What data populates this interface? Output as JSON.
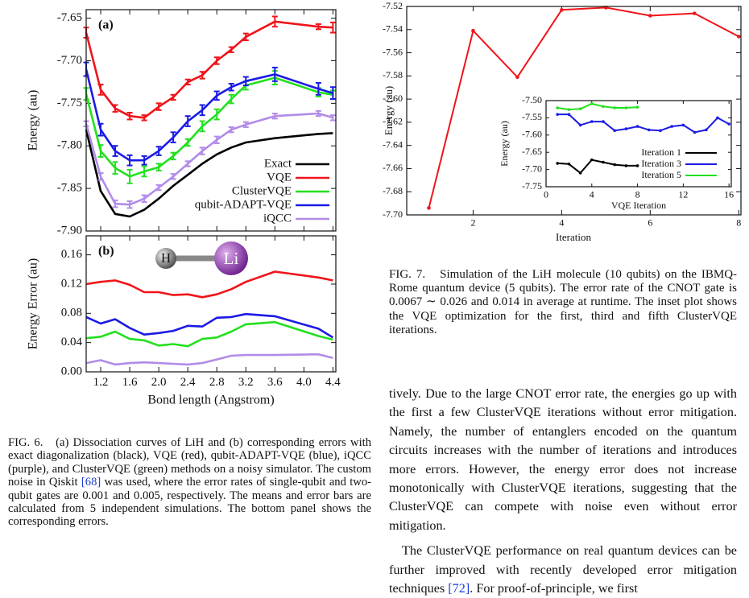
{
  "chart_data": [
    {
      "type": "line",
      "annotation": "(a)",
      "y_label": "Energy (au)",
      "x": [
        1.0,
        1.2,
        1.4,
        1.6,
        1.8,
        2.0,
        2.2,
        2.4,
        2.6,
        2.8,
        3.0,
        3.2,
        3.6,
        4.2,
        4.4
      ],
      "xlim": [
        1.0,
        4.44
      ],
      "ylim": [
        -7.9,
        -7.64
      ],
      "yticks": [
        -7.65,
        {
          "value": -7.7,
          "label": "-7.70"
        },
        -7.75,
        {
          "value": -7.8,
          "label": "-7.80"
        },
        -7.85,
        {
          "value": -7.9,
          "label": "-7.90"
        }
      ],
      "legend": "lower right",
      "series": [
        {
          "name": "Exact",
          "color": "#000000",
          "values": [
            -7.781,
            -7.853,
            -7.88,
            -7.883,
            -7.875,
            -7.862,
            -7.847,
            -7.834,
            -7.821,
            -7.81,
            -7.802,
            -7.796,
            -7.791,
            -7.786,
            -7.785
          ]
        },
        {
          "name": "VQE",
          "color": "#f0141a",
          "values": [
            -7.667,
            -7.734,
            -7.756,
            -7.765,
            -7.767,
            -7.754,
            -7.743,
            -7.725,
            -7.717,
            -7.7,
            -7.687,
            -7.672,
            -7.654,
            -7.66,
            -7.661
          ],
          "errors": [
            0.006,
            0.006,
            0.004,
            0.004,
            0.003,
            0.004,
            0.003,
            0.003,
            0.004,
            0.004,
            0.003,
            0.004,
            0.006,
            0.003,
            0.006
          ]
        },
        {
          "name": "ClusterVQE",
          "color": "#22e01e",
          "values": [
            -7.739,
            -7.806,
            -7.826,
            -7.836,
            -7.83,
            -7.825,
            -7.812,
            -7.796,
            -7.777,
            -7.763,
            -7.745,
            -7.729,
            -7.72,
            -7.737,
            -7.74
          ],
          "errors": [
            0.007,
            0.007,
            0.007,
            0.008,
            0.006,
            0.004,
            0.004,
            0.004,
            0.006,
            0.006,
            0.005,
            0.005,
            0.008,
            0.005,
            0.005
          ]
        },
        {
          "name": "qubit-ADAPT-VQE",
          "color": "#1a1ae6",
          "values": [
            -7.71,
            -7.781,
            -7.806,
            -7.817,
            -7.817,
            -7.806,
            -7.79,
            -7.771,
            -7.758,
            -7.741,
            -7.731,
            -7.724,
            -7.716,
            -7.733,
            -7.738
          ],
          "errors": [
            0.008,
            0.007,
            0.006,
            0.006,
            0.005,
            0.005,
            0.006,
            0.006,
            0.006,
            0.005,
            0.004,
            0.005,
            0.008,
            0.007,
            0.007
          ]
        },
        {
          "name": "iQCC",
          "color": "#b28ce8",
          "values": [
            -7.774,
            -7.836,
            -7.868,
            -7.869,
            -7.862,
            -7.849,
            -7.836,
            -7.821,
            -7.806,
            -7.793,
            -7.781,
            -7.775,
            -7.765,
            -7.762,
            -7.767
          ],
          "errors": [
            0.003,
            0.004,
            0.004,
            0.004,
            0.004,
            0.003,
            0.003,
            0.003,
            0.004,
            0.004,
            0.003,
            0.003,
            0.003,
            0.003,
            0.003
          ]
        }
      ]
    },
    {
      "type": "line",
      "annotation": "(b)",
      "y_label": "Energy Error (au)",
      "x_label": "Bond length (Angstrom)",
      "molecule": [
        "H",
        "Li"
      ],
      "x": [
        1.0,
        1.2,
        1.4,
        1.6,
        1.8,
        2.0,
        2.2,
        2.4,
        2.6,
        2.8,
        3.0,
        3.2,
        3.6,
        4.2,
        4.4
      ],
      "xlim": [
        1.0,
        4.44
      ],
      "ylim": [
        0,
        0.186
      ],
      "xticks": [
        1.2,
        1.6,
        {
          "value": 2,
          "label": "2.0"
        },
        2.4,
        2.8,
        3.2,
        3.6,
        {
          "value": 4,
          "label": "4.0"
        },
        4.4
      ],
      "yticks": [
        {
          "value": 0,
          "label": "0.00"
        },
        0.04,
        0.08,
        0.12,
        0.16
      ],
      "series": [
        {
          "color": "#f0141a",
          "values": [
            0.12,
            0.123,
            0.125,
            0.119,
            0.109,
            0.109,
            0.105,
            0.106,
            0.102,
            0.106,
            0.113,
            0.123,
            0.137,
            0.129,
            0.125
          ]
        },
        {
          "color": "#1a1ae6",
          "values": [
            0.075,
            0.066,
            0.072,
            0.06,
            0.051,
            0.053,
            0.056,
            0.063,
            0.062,
            0.074,
            0.075,
            0.079,
            0.076,
            0.059,
            0.047
          ]
        },
        {
          "color": "#22e01e",
          "values": [
            0.046,
            0.048,
            0.055,
            0.045,
            0.043,
            0.036,
            0.038,
            0.035,
            0.045,
            0.047,
            0.055,
            0.065,
            0.068,
            0.049,
            0.044
          ]
        },
        {
          "color": "#b28ce8",
          "values": [
            0.012,
            0.016,
            0.01,
            0.012,
            0.013,
            0.012,
            0.011,
            0.01,
            0.012,
            0.017,
            0.022,
            0.023,
            0.023,
            0.024,
            0.019
          ]
        }
      ]
    },
    {
      "type": "line",
      "y_label": "Energy (au)",
      "x_label": "Iteration",
      "markers": true,
      "x": [
        1,
        2,
        3,
        4,
        5,
        6,
        7,
        8
      ],
      "xlim": [
        0.5,
        8.05
      ],
      "ylim": [
        -7.7,
        -7.52
      ],
      "xticks": [
        2,
        4,
        6,
        8
      ],
      "yticks": [
        -7.52,
        -7.54,
        -7.56,
        -7.58,
        {
          "value": -7.6,
          "label": "-7.60"
        },
        -7.62,
        -7.64,
        -7.66,
        -7.68,
        {
          "value": -7.7,
          "label": "-7.70"
        }
      ],
      "series": [
        {
          "color": "#f0141a",
          "values": [
            -7.694,
            -7.541,
            -7.581,
            -7.523,
            -7.521,
            -7.528,
            -7.526,
            -7.546
          ]
        }
      ]
    },
    {
      "type": "line",
      "y_label": "Energy (au)",
      "x_label": "VQE Iteration",
      "markers": true,
      "legend": "lower right",
      "xlim": [
        0,
        16.2
      ],
      "ylim": [
        -7.75,
        -7.5
      ],
      "xticks": [
        0,
        4,
        8,
        12,
        16
      ],
      "yticks": [
        {
          "value": -7.5,
          "label": "-7.50"
        },
        -7.55,
        {
          "value": -7.6,
          "label": "-7.60"
        },
        -7.65,
        {
          "value": -7.7,
          "label": "-7.70"
        },
        -7.75
      ],
      "series": [
        {
          "name": "Iteration 1",
          "color": "#000000",
          "x": [
            1,
            2,
            3,
            4,
            5,
            6,
            7,
            8
          ],
          "values": [
            -7.682,
            -7.684,
            -7.71,
            -7.672,
            -7.679,
            -7.686,
            -7.689,
            -7.689
          ]
        },
        {
          "name": "Iteration 3",
          "color": "#1a1ae6",
          "x": [
            1,
            2,
            3,
            4,
            5,
            6,
            7,
            8,
            9,
            10,
            11,
            12,
            13,
            14,
            15,
            16
          ],
          "values": [
            -7.54,
            -7.54,
            -7.571,
            -7.561,
            -7.561,
            -7.587,
            -7.582,
            -7.575,
            -7.585,
            -7.587,
            -7.575,
            -7.571,
            -7.592,
            -7.585,
            -7.55,
            -7.568
          ]
        },
        {
          "name": "Iteration 5",
          "color": "#22e01e",
          "x": [
            1,
            2,
            3,
            4,
            5,
            6,
            7,
            8
          ],
          "values": [
            -7.521,
            -7.526,
            -7.524,
            -7.509,
            -7.517,
            -7.521,
            -7.521,
            -7.519
          ]
        }
      ]
    }
  ],
  "fig6_caption": {
    "label": "FIG. 6.",
    "text_1": "(a) Dissociation curves of LiH and (b) corresponding errors with exact diagonalization (black), VQE (red), qubit-ADAPT-VQE (blue), iQCC (purple), and ClusterVQE (green) methods on a noisy simulator. The custom noise in Qiskit ",
    "citation": "[68]",
    "text_2": " was used, where the error rates of single-qubit and two-qubit gates are 0.001 and 0.005, respectively. The means and error bars are calculated from 5 independent simulations. The bottom panel shows the corresponding errors."
  },
  "fig7_caption": {
    "label": "FIG. 7.",
    "text": "Simulation of the LiH molecule (10 qubits) on the IBMQ-Rome quantum device (5 qubits). The error rate of the CNOT gate is 0.0067 ∼ 0.026 and 0.014 in average at runtime. The inset plot shows the VQE optimization for the first, third and fifth ClusterVQE iterations."
  },
  "body": {
    "paragraph_1": "tively. Due to the large CNOT error rate, the energies go up with the first a few ClusterVQE iterations without error mitigation. Namely, the number of entanglers encoded on the quantum circuits increases with the number of iterations and introduces more errors. However, the energy error does not increase monotonically with ClusterVQE iterations, suggesting that the ClusterVQE can compete with noise even without error mitigation.",
    "paragraph_2": "The ClusterVQE performance on real quantum devices can be further improved with recently developed error mitigation techniques ",
    "citation": "[72]",
    "paragraph_2_end": ". For proof-of-principle, we first"
  }
}
